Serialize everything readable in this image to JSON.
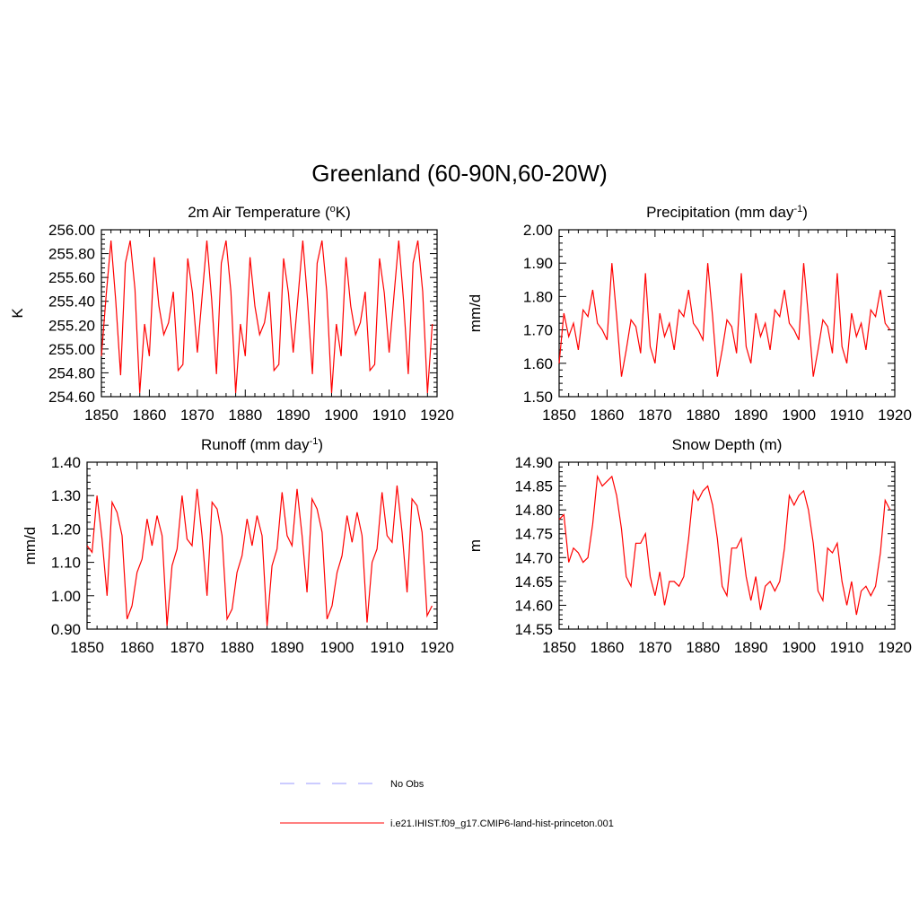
{
  "title": "Greenland (60-90N,60-20W)",
  "legend": {
    "placement": "bottom-center",
    "entries": [
      {
        "label": "No Obs",
        "color": "#9999ff",
        "style": "dashed"
      },
      {
        "label": "i.e21.IHIST.f09_g17.CMIP6-land-hist-princeton.001",
        "color": "#ff0000",
        "style": "solid"
      }
    ]
  },
  "chart_data": [
    {
      "type": "line",
      "title": "2m Air Temperature (oK)",
      "title_parts": [
        "2m Air Temperature (",
        "o",
        "K)"
      ],
      "xlabel": "",
      "ylabel": "K",
      "xlim": [
        1850,
        1920
      ],
      "ylim": [
        254.6,
        256.0
      ],
      "xticks": [
        1850,
        1860,
        1870,
        1880,
        1890,
        1900,
        1910,
        1920
      ],
      "yticks": [
        "254.60",
        "254.80",
        "255.00",
        "255.20",
        "255.40",
        "255.60",
        "255.80",
        "256.00"
      ],
      "x": [
        1850,
        1851,
        1852,
        1853,
        1854,
        1855,
        1856,
        1857,
        1858,
        1859,
        1860,
        1861,
        1862,
        1863,
        1864,
        1865,
        1866,
        1867,
        1868,
        1869,
        1870,
        1871,
        1872,
        1873,
        1874,
        1875,
        1876,
        1877,
        1878,
        1879,
        1880,
        1881,
        1882,
        1883,
        1884,
        1885,
        1886,
        1887,
        1888,
        1889,
        1890,
        1891,
        1892,
        1893,
        1894,
        1895,
        1896,
        1897,
        1898,
        1899,
        1900,
        1901,
        1902,
        1903,
        1904,
        1905,
        1906,
        1907,
        1908,
        1909,
        1910,
        1911,
        1912,
        1913,
        1914,
        1915,
        1916,
        1917,
        1918,
        1919
      ],
      "series": [
        {
          "color": "#ff0000",
          "values": [
            254.94,
            255.45,
            255.91,
            255.4,
            254.78,
            255.72,
            255.91,
            255.5,
            254.63,
            255.21,
            254.94,
            255.77,
            255.36,
            255.12,
            255.22,
            255.48,
            254.82,
            254.87,
            255.76,
            255.47,
            254.97,
            255.44,
            255.91,
            255.41,
            254.79,
            255.72,
            255.91,
            255.48,
            254.63,
            255.21,
            254.94,
            255.77,
            255.36,
            255.12,
            255.22,
            255.48,
            254.82,
            254.87,
            255.76,
            255.47,
            254.97,
            255.44,
            255.91,
            255.41,
            254.79,
            255.72,
            255.91,
            255.48,
            254.63,
            255.21,
            254.94,
            255.77,
            255.36,
            255.12,
            255.22,
            255.48,
            254.82,
            254.87,
            255.76,
            255.47,
            254.97,
            255.44,
            255.91,
            255.41,
            254.79,
            255.72,
            255.91,
            255.48,
            254.63,
            255.21
          ]
        }
      ]
    },
    {
      "type": "line",
      "title": "Precipitation (mm day-1)",
      "title_parts": [
        "Precipitation (mm day",
        "-1",
        ")"
      ],
      "xlabel": "",
      "ylabel": "mm/d",
      "xlim": [
        1850,
        1920
      ],
      "ylim": [
        1.5,
        2.0
      ],
      "xticks": [
        1850,
        1860,
        1870,
        1880,
        1890,
        1900,
        1910,
        1920
      ],
      "yticks": [
        "1.50",
        "1.60",
        "1.70",
        "1.80",
        "1.90",
        "2.00"
      ],
      "x": [
        1850,
        1851,
        1852,
        1853,
        1854,
        1855,
        1856,
        1857,
        1858,
        1859,
        1860,
        1861,
        1862,
        1863,
        1864,
        1865,
        1866,
        1867,
        1868,
        1869,
        1870,
        1871,
        1872,
        1873,
        1874,
        1875,
        1876,
        1877,
        1878,
        1879,
        1880,
        1881,
        1882,
        1883,
        1884,
        1885,
        1886,
        1887,
        1888,
        1889,
        1890,
        1891,
        1892,
        1893,
        1894,
        1895,
        1896,
        1897,
        1898,
        1899,
        1900,
        1901,
        1902,
        1903,
        1904,
        1905,
        1906,
        1907,
        1908,
        1909,
        1910,
        1911,
        1912,
        1913,
        1914,
        1915,
        1916,
        1917,
        1918,
        1919
      ],
      "series": [
        {
          "color": "#ff0000",
          "values": [
            1.6,
            1.75,
            1.68,
            1.72,
            1.64,
            1.76,
            1.74,
            1.82,
            1.72,
            1.7,
            1.67,
            1.9,
            1.74,
            1.56,
            1.64,
            1.73,
            1.71,
            1.63,
            1.87,
            1.65,
            1.6,
            1.75,
            1.68,
            1.72,
            1.64,
            1.76,
            1.74,
            1.82,
            1.72,
            1.7,
            1.67,
            1.9,
            1.74,
            1.56,
            1.64,
            1.73,
            1.71,
            1.63,
            1.87,
            1.65,
            1.6,
            1.75,
            1.68,
            1.72,
            1.64,
            1.76,
            1.74,
            1.82,
            1.72,
            1.7,
            1.67,
            1.9,
            1.74,
            1.56,
            1.64,
            1.73,
            1.71,
            1.63,
            1.87,
            1.65,
            1.6,
            1.75,
            1.68,
            1.72,
            1.64,
            1.76,
            1.74,
            1.82,
            1.72,
            1.7
          ]
        }
      ]
    },
    {
      "type": "line",
      "title": "Runoff (mm day-1)",
      "title_parts": [
        "Runoff (mm day",
        "-1",
        ")"
      ],
      "xlabel": "",
      "ylabel": "mm/d",
      "xlim": [
        1850,
        1920
      ],
      "ylim": [
        0.9,
        1.4
      ],
      "xticks": [
        1850,
        1860,
        1870,
        1880,
        1890,
        1900,
        1910,
        1920
      ],
      "yticks": [
        "0.90",
        "1.00",
        "1.10",
        "1.20",
        "1.30",
        "1.40"
      ],
      "x": [
        1850,
        1851,
        1852,
        1853,
        1854,
        1855,
        1856,
        1857,
        1858,
        1859,
        1860,
        1861,
        1862,
        1863,
        1864,
        1865,
        1866,
        1867,
        1868,
        1869,
        1870,
        1871,
        1872,
        1873,
        1874,
        1875,
        1876,
        1877,
        1878,
        1879,
        1880,
        1881,
        1882,
        1883,
        1884,
        1885,
        1886,
        1887,
        1888,
        1889,
        1890,
        1891,
        1892,
        1893,
        1894,
        1895,
        1896,
        1897,
        1898,
        1899,
        1900,
        1901,
        1902,
        1903,
        1904,
        1905,
        1906,
        1907,
        1908,
        1909,
        1910,
        1911,
        1912,
        1913,
        1914,
        1915,
        1916,
        1917,
        1918,
        1919
      ],
      "series": [
        {
          "color": "#ff0000",
          "values": [
            1.15,
            1.13,
            1.3,
            1.17,
            1.0,
            1.28,
            1.25,
            1.18,
            0.93,
            0.97,
            1.07,
            1.11,
            1.23,
            1.15,
            1.24,
            1.18,
            0.91,
            1.09,
            1.14,
            1.3,
            1.17,
            1.15,
            1.32,
            1.18,
            1.0,
            1.28,
            1.26,
            1.18,
            0.93,
            0.96,
            1.07,
            1.12,
            1.23,
            1.15,
            1.24,
            1.18,
            0.91,
            1.09,
            1.14,
            1.31,
            1.18,
            1.15,
            1.32,
            1.18,
            1.01,
            1.29,
            1.26,
            1.19,
            0.93,
            0.97,
            1.07,
            1.12,
            1.24,
            1.16,
            1.25,
            1.18,
            0.92,
            1.1,
            1.14,
            1.31,
            1.18,
            1.16,
            1.33,
            1.19,
            1.01,
            1.29,
            1.27,
            1.19,
            0.94,
            0.97
          ]
        }
      ]
    },
    {
      "type": "line",
      "title": "Snow Depth (m)",
      "title_parts": [
        "Snow Depth (m)"
      ],
      "xlabel": "",
      "ylabel": "m",
      "xlim": [
        1850,
        1920
      ],
      "ylim": [
        14.55,
        14.9
      ],
      "xticks": [
        1850,
        1860,
        1870,
        1880,
        1890,
        1900,
        1910,
        1920
      ],
      "yticks": [
        "14.55",
        "14.60",
        "14.65",
        "14.70",
        "14.75",
        "14.80",
        "14.85",
        "14.90"
      ],
      "x": [
        1850,
        1851,
        1852,
        1853,
        1854,
        1855,
        1856,
        1857,
        1858,
        1859,
        1860,
        1861,
        1862,
        1863,
        1864,
        1865,
        1866,
        1867,
        1868,
        1869,
        1870,
        1871,
        1872,
        1873,
        1874,
        1875,
        1876,
        1877,
        1878,
        1879,
        1880,
        1881,
        1882,
        1883,
        1884,
        1885,
        1886,
        1887,
        1888,
        1889,
        1890,
        1891,
        1892,
        1893,
        1894,
        1895,
        1896,
        1897,
        1898,
        1899,
        1900,
        1901,
        1902,
        1903,
        1904,
        1905,
        1906,
        1907,
        1908,
        1909,
        1910,
        1911,
        1912,
        1913,
        1914,
        1915,
        1916,
        1917,
        1918,
        1919
      ],
      "series": [
        {
          "color": "#ff0000",
          "values": [
            14.78,
            14.79,
            14.69,
            14.72,
            14.71,
            14.69,
            14.7,
            14.77,
            14.87,
            14.85,
            14.86,
            14.87,
            14.83,
            14.76,
            14.66,
            14.64,
            14.73,
            14.73,
            14.75,
            14.66,
            14.62,
            14.67,
            14.6,
            14.65,
            14.65,
            14.64,
            14.66,
            14.74,
            14.84,
            14.82,
            14.84,
            14.85,
            14.81,
            14.74,
            14.64,
            14.62,
            14.72,
            14.72,
            14.74,
            14.66,
            14.61,
            14.66,
            14.59,
            14.64,
            14.65,
            14.63,
            14.65,
            14.72,
            14.83,
            14.81,
            14.83,
            14.84,
            14.8,
            14.73,
            14.63,
            14.61,
            14.72,
            14.71,
            14.73,
            14.65,
            14.6,
            14.65,
            14.58,
            14.63,
            14.64,
            14.62,
            14.64,
            14.71,
            14.82,
            14.8
          ]
        }
      ]
    }
  ]
}
